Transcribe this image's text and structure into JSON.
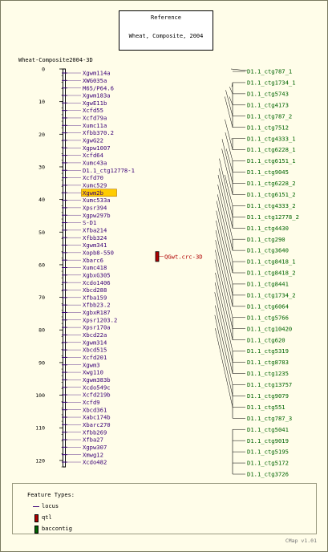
{
  "reference": {
    "line1": "Reference",
    "line2": "Wheat, Composite, 2004"
  },
  "map_title": "Wheat-Composite2004-3D",
  "axis_ticks": [
    "0",
    "10",
    "20",
    "30",
    "40",
    "50",
    "60",
    "70",
    "80",
    "90",
    "100",
    "110",
    "120"
  ],
  "axis_max": 122,
  "markers": [
    {
      "name": "Xgwm114a",
      "cm": 0
    },
    {
      "name": "XWG035a",
      "cm": 1.6
    },
    {
      "name": "M65/P64.6",
      "cm": 3.2
    },
    {
      "name": "Xgwm183a",
      "cm": 5.4
    },
    {
      "name": "XgwE11b",
      "cm": 7.4
    },
    {
      "name": "Xcfd55",
      "cm": 9.6
    },
    {
      "name": "Xcfd79a",
      "cm": 11.7
    },
    {
      "name": "Xumc11a",
      "cm": 13.7
    },
    {
      "name": "Xfbb370.2",
      "cm": 15.5
    },
    {
      "name": "XgwG22",
      "cm": 17.5
    },
    {
      "name": "Xgpw1007",
      "cm": 19.5
    },
    {
      "name": "Xcfd64",
      "cm": 21.5
    },
    {
      "name": "Xumc43a",
      "cm": 23.5
    },
    {
      "name": "D1.1_ctg12778-1",
      "cm": 25.4
    },
    {
      "name": "Xcfd70",
      "cm": 27.4
    },
    {
      "name": "Xumc529",
      "cm": 29.4
    },
    {
      "name": "Xgwm2b",
      "cm": 31.4,
      "highlight": true
    },
    {
      "name": "Xumc533a",
      "cm": 33.4
    },
    {
      "name": "Xpsr394",
      "cm": 35.4
    },
    {
      "name": "Xgpw297b",
      "cm": 37.4
    },
    {
      "name": "S-D1",
      "cm": 39.4
    },
    {
      "name": "Xfba214",
      "cm": 41.4
    },
    {
      "name": "Xfbb324",
      "cm": 43.4
    },
    {
      "name": "Xgwm341",
      "cm": 45.4
    },
    {
      "name": "Xopb8-550",
      "cm": 47.4
    },
    {
      "name": "Xbarc6",
      "cm": 49.4
    },
    {
      "name": "Xumc418",
      "cm": 51.4
    },
    {
      "name": "XgbxG305",
      "cm": 53.4
    },
    {
      "name": "Xcdo1406",
      "cm": 55.4
    },
    {
      "name": "Xbcd288",
      "cm": 57.4
    },
    {
      "name": "Xfba159",
      "cm": 59.4
    },
    {
      "name": "Xfbb23.2",
      "cm": 61.4
    },
    {
      "name": "XgbxR187",
      "cm": 63.4
    },
    {
      "name": "Xpsr1203.2",
      "cm": 65.4
    },
    {
      "name": "Xpsr170a",
      "cm": 67.4
    },
    {
      "name": "Xbcd22a",
      "cm": 69.4
    },
    {
      "name": "Xgwm314",
      "cm": 71.4
    },
    {
      "name": "Xbcd515",
      "cm": 73.4
    },
    {
      "name": "Xcfd201",
      "cm": 75.4
    },
    {
      "name": "Xgwm3",
      "cm": 77.4
    },
    {
      "name": "Xwg110",
      "cm": 79.4
    },
    {
      "name": "Xgwm383b",
      "cm": 81.4
    },
    {
      "name": "Xcdo549c",
      "cm": 83.4
    },
    {
      "name": "Xcfd219b",
      "cm": 85.4
    },
    {
      "name": "Xcfd9",
      "cm": 87.4
    },
    {
      "name": "Xbcd361",
      "cm": 89.4
    },
    {
      "name": "Xabc174b",
      "cm": 91.4
    },
    {
      "name": "Xbarc270",
      "cm": 93.4
    },
    {
      "name": "Xfbb269",
      "cm": 95.4
    },
    {
      "name": "Xfba27",
      "cm": 97.4
    },
    {
      "name": "Xgpw307",
      "cm": 99.4
    },
    {
      "name": "Xmwg12",
      "cm": 101.4
    },
    {
      "name": "Xcdo482",
      "cm": 103.4
    }
  ],
  "qtl": {
    "name": "QGwt.crc-3D",
    "start_cm": 56.0,
    "end_cm": 59.0
  },
  "contigs": [
    {
      "name": "D1.1_ctg787_1"
    },
    {
      "name": "D1.1_ctg1734_1"
    },
    {
      "name": "D1.1_ctg5743"
    },
    {
      "name": "D1.1_ctg4173"
    },
    {
      "name": "D1.1_ctg787_2"
    },
    {
      "name": "D1.1_ctg7512"
    },
    {
      "name": "D1.1_ctg4333_1"
    },
    {
      "name": "D1.1_ctg6228_1"
    },
    {
      "name": "D1.1_ctg6151_1"
    },
    {
      "name": "D1.1_ctg9045"
    },
    {
      "name": "D1.1_ctg6228_2"
    },
    {
      "name": "D1.1_ctg6151_2"
    },
    {
      "name": "D1.1_ctg4333_2"
    },
    {
      "name": "D1.1_ctg12778_2"
    },
    {
      "name": "D1.1_ctg4430"
    },
    {
      "name": "D1.1_ctg290"
    },
    {
      "name": "D1.1_ctg3640"
    },
    {
      "name": "D1.1_ctg8418_1"
    },
    {
      "name": "D1.1_ctg8418_2"
    },
    {
      "name": "D1.1_ctg8441"
    },
    {
      "name": "D1.1_ctg1734_2"
    },
    {
      "name": "D1.1_ctg6064"
    },
    {
      "name": "D1.1_ctg5766"
    },
    {
      "name": "D1.1_ctg10420"
    },
    {
      "name": "D1.1_ctg620"
    },
    {
      "name": "D1.1_ctg5319"
    },
    {
      "name": "D1.1_ctg8783"
    },
    {
      "name": "D1.1_ctg1235"
    },
    {
      "name": "D1.1_ctg13757"
    },
    {
      "name": "D1.1_ctg9079"
    },
    {
      "name": "D1.1_ctg551"
    },
    {
      "name": "D1.1_ctg787_3"
    },
    {
      "name": "D1.1_ctg5041"
    },
    {
      "name": "D1.1_ctg9019"
    },
    {
      "name": "D1.1_ctg5195"
    },
    {
      "name": "D1.1_ctg5172"
    },
    {
      "name": "D1.1_ctg3726"
    }
  ],
  "legend": {
    "title": "Feature Types:",
    "items": [
      {
        "label": "locus",
        "color": "#3a0077"
      },
      {
        "label": "qtl",
        "color": "#b00000"
      },
      {
        "label": "baccontig",
        "color": "#006400"
      }
    ]
  },
  "version": "CMap v1.01",
  "colors": {
    "marker_text": "#3a0077",
    "contig_text": "#006400",
    "qtl_fill": "#b00000",
    "highlight": "#ffcc00"
  }
}
